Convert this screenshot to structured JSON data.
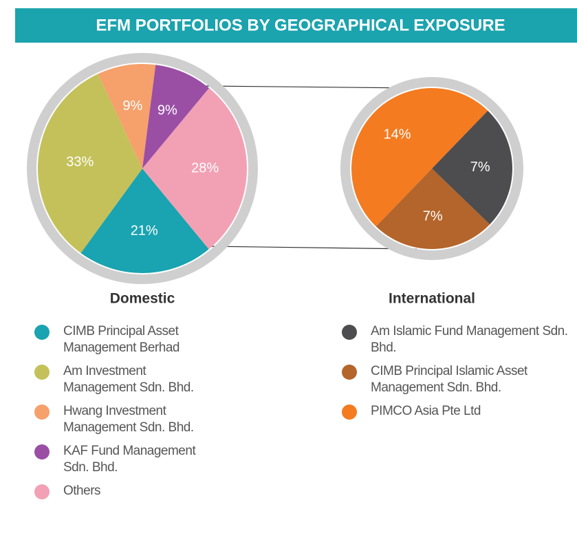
{
  "chart_data": [
    {
      "type": "pie",
      "title": "EFM PORTFOLIOS BY GEOGRAPHICAL EXPOSURE",
      "name": "Domestic",
      "categories": [
        "CIMB Principal Asset Management Berhad",
        "Am Investment Management Sdn. Bhd.",
        "Hwang Investment Management Sdn. Bhd.",
        "KAF Fund Management Sdn. Bhd.",
        "Others"
      ],
      "values": [
        21,
        33,
        9,
        9,
        28
      ],
      "value_labels": [
        "21%",
        "33%",
        "9%",
        "9%",
        "28%"
      ],
      "colors": [
        "#1aa3b0",
        "#c4c15a",
        "#f6a06c",
        "#9a4fa5",
        "#f2a1b4"
      ]
    },
    {
      "type": "pie",
      "name": "International",
      "categories": [
        "Am Islamic Fund Management Sdn. Bhd.",
        "CIMB Principal Islamic Asset Management Sdn. Bhd.",
        "PIMCO Asia Pte Ltd"
      ],
      "values": [
        7,
        7,
        14
      ],
      "value_labels": [
        "7%",
        "7%",
        "14%"
      ],
      "colors": [
        "#4d4d4f",
        "#b4652b",
        "#f47b20"
      ]
    }
  ]
}
